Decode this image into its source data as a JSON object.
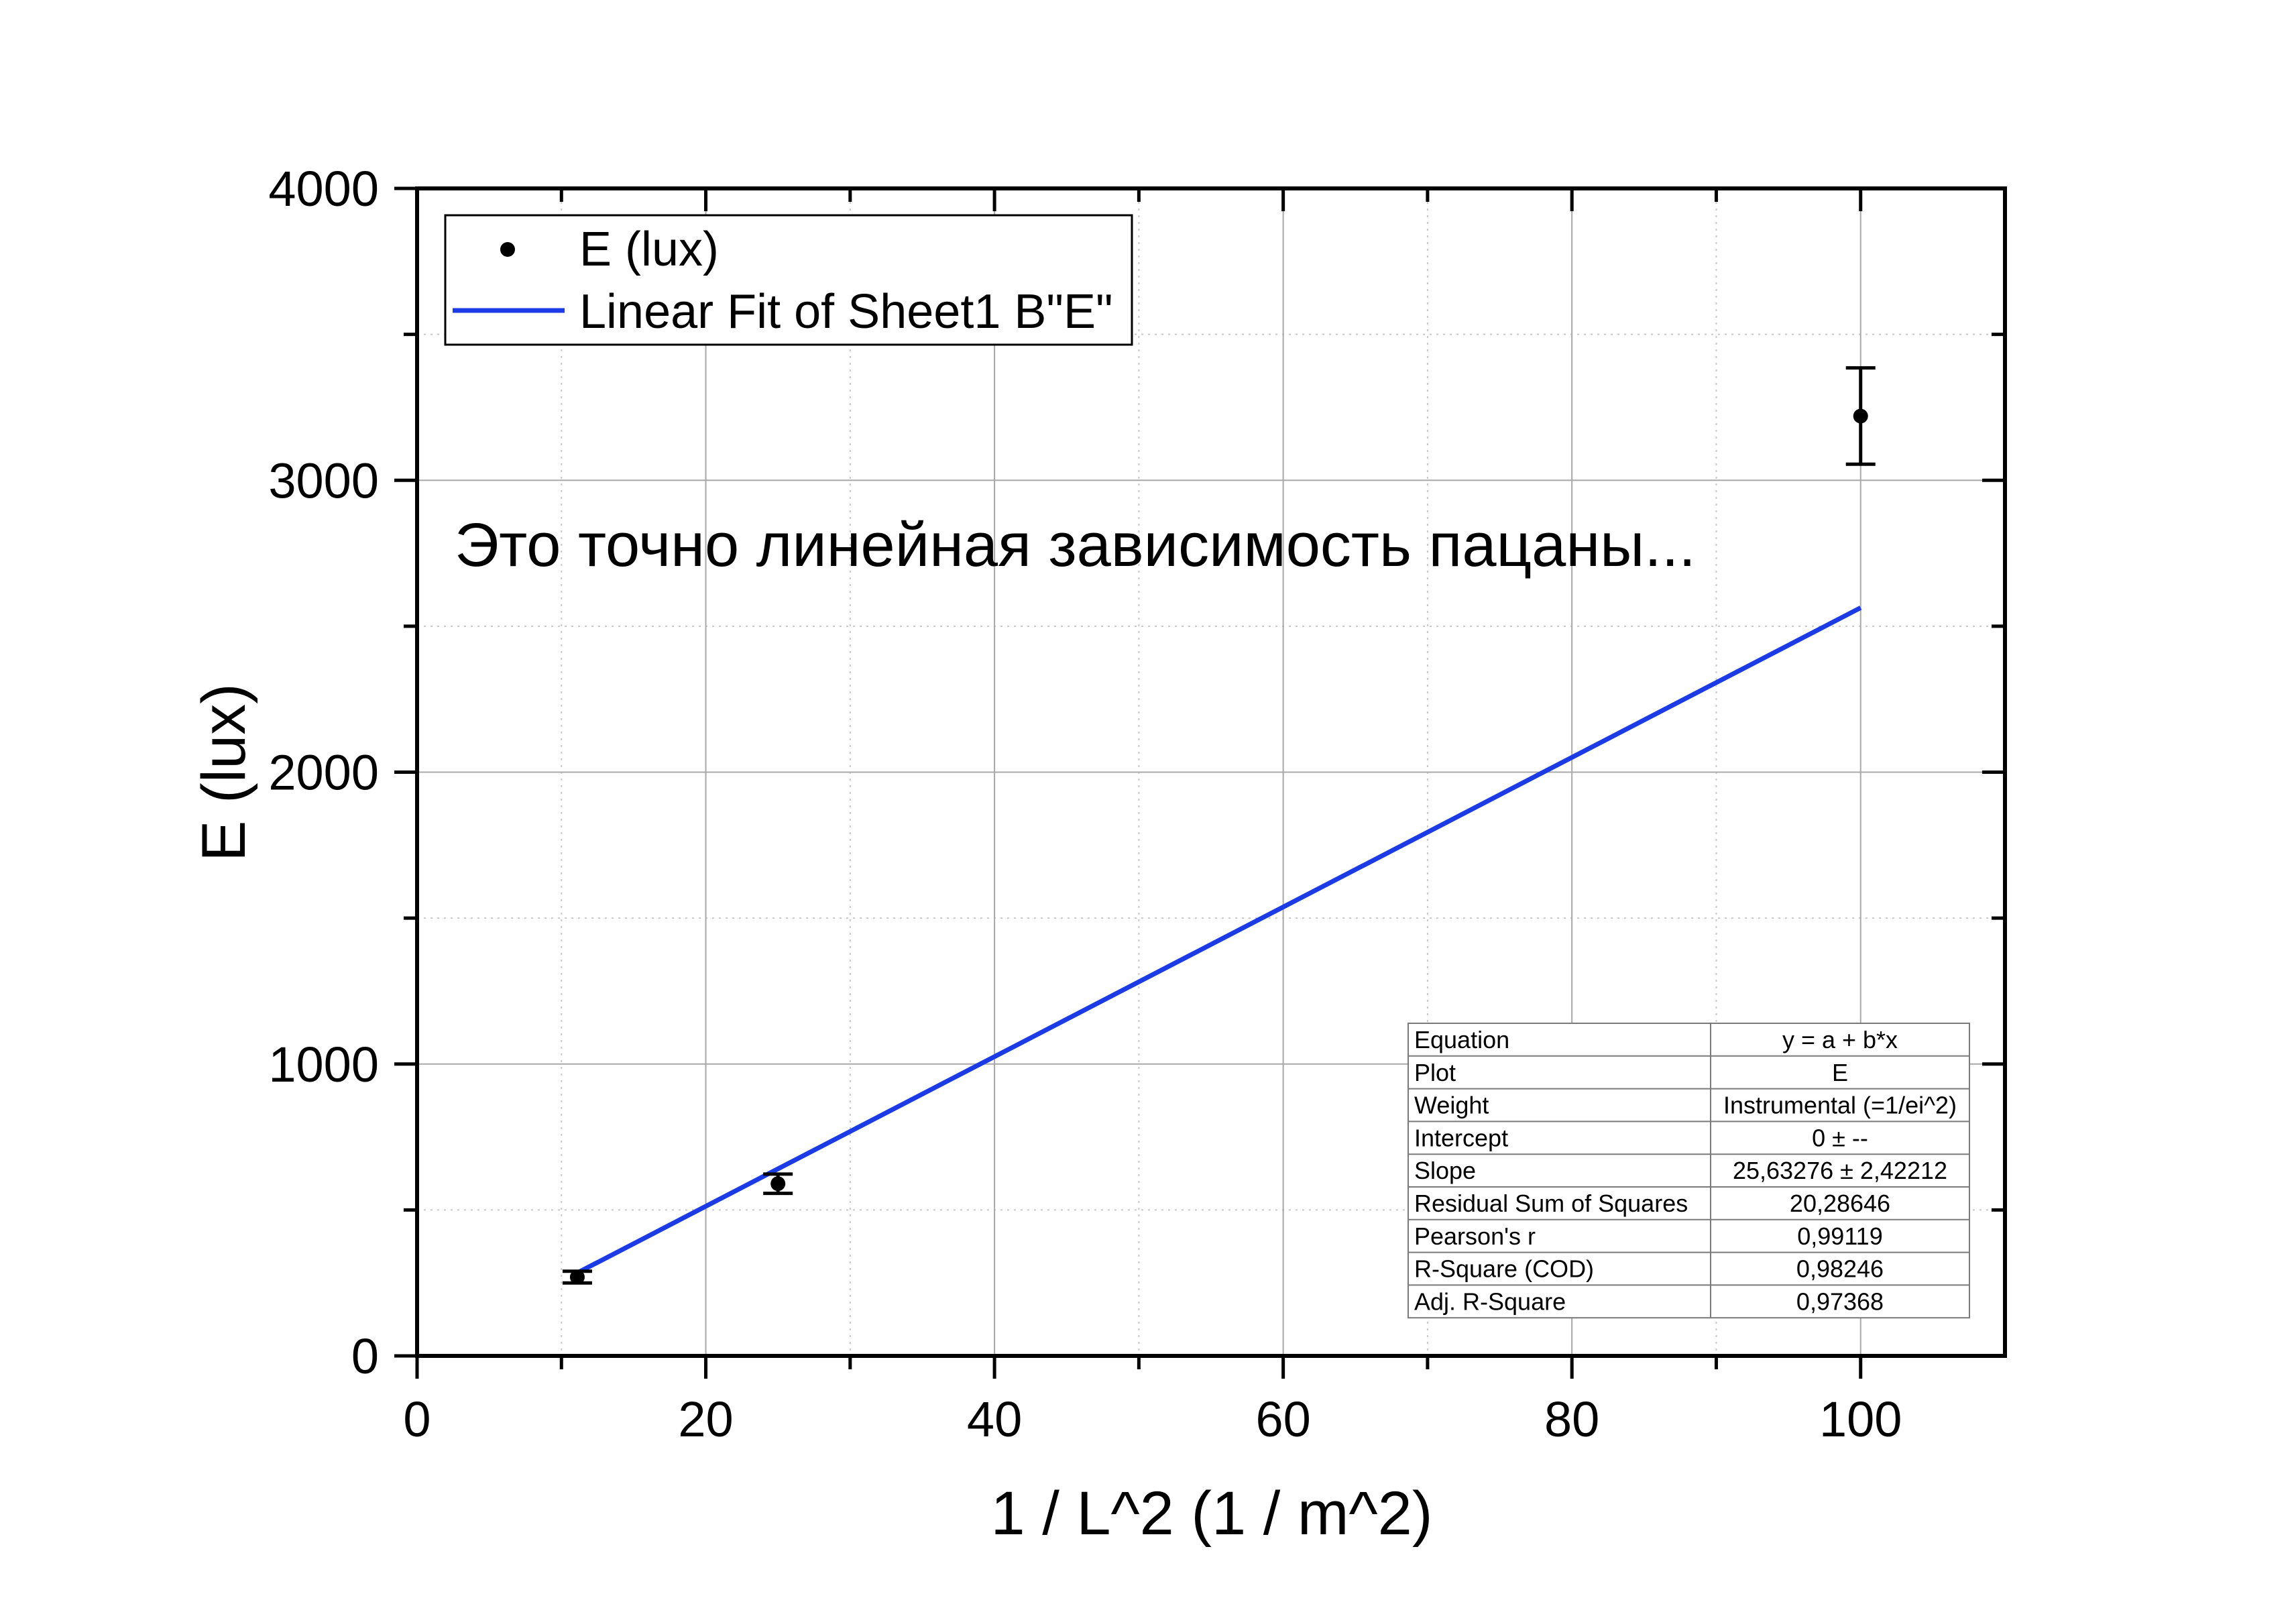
{
  "chart_data": {
    "type": "scatter",
    "xlabel": "1 / L^2 (1 / m^2)",
    "ylabel": "E (lux)",
    "xlim": [
      0,
      110
    ],
    "ylim": [
      0,
      4000
    ],
    "xticks": [
      0,
      20,
      40,
      60,
      80,
      100
    ],
    "yticks": [
      0,
      1000,
      2000,
      3000,
      4000
    ],
    "grid": true,
    "legend": "top-left",
    "series": [
      {
        "name": "E (lux)",
        "style": "scatter",
        "color": "#000000",
        "x": [
          11.1,
          25,
          100
        ],
        "y": [
          270,
          590,
          3220
        ],
        "yerr": [
          20,
          33,
          165
        ]
      },
      {
        "name": "Linear Fit of Sheet1 B\"E\"",
        "style": "line",
        "color": "#1b3be6",
        "x": [
          11.1,
          100
        ],
        "y": [
          284.5,
          2563.3
        ]
      }
    ],
    "annotations": [
      "Это точно линейная зависимость пацаны..."
    ],
    "fit_table": [
      {
        "label": "Equation",
        "value": "y = a + b*x"
      },
      {
        "label": "Plot",
        "value": "E"
      },
      {
        "label": "Weight",
        "value": "Instrumental (=1/ei^2)"
      },
      {
        "label": "Intercept",
        "value": "0 ± --"
      },
      {
        "label": "Slope",
        "value": "25,63276 ± 2,42212"
      },
      {
        "label": "Residual Sum of Squares",
        "value": "20,28646"
      },
      {
        "label": "Pearson's r",
        "value": "0,99119"
      },
      {
        "label": "R-Square (COD)",
        "value": "0,98246"
      },
      {
        "label": "Adj. R-Square",
        "value": "0,97368"
      }
    ]
  }
}
